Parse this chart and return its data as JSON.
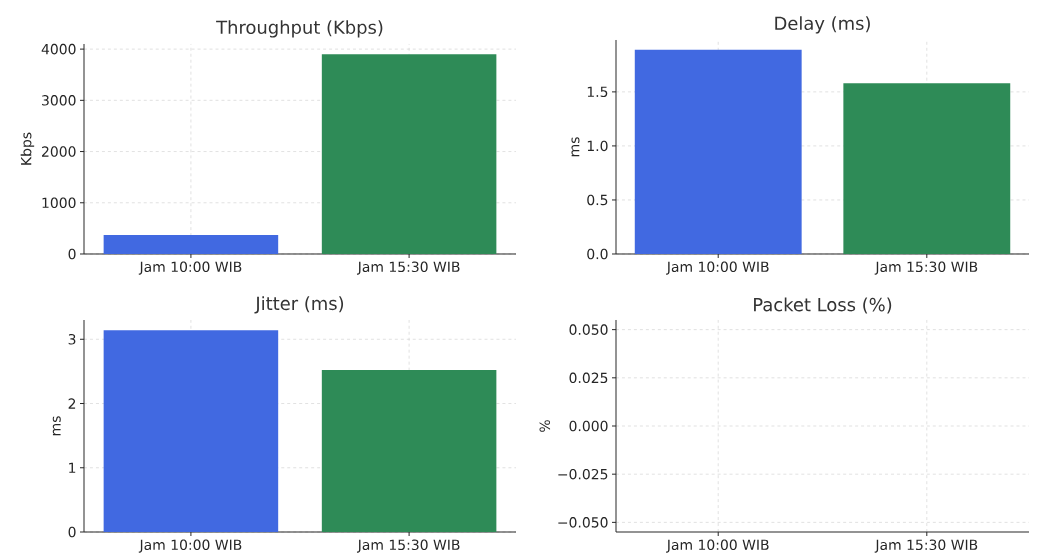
{
  "chart_data": [
    {
      "type": "bar",
      "title": "Throughput (Kbps)",
      "ylabel": "Kbps",
      "categories": [
        "Jam 10:00 WIB",
        "Jam 15:30 WIB"
      ],
      "values": [
        370,
        3900
      ],
      "colors": [
        "#4169e1",
        "#2e8b57"
      ],
      "ylim": [
        0,
        4100
      ],
      "yticks": [
        0,
        1000,
        2000,
        3000,
        4000
      ],
      "grid": true
    },
    {
      "type": "bar",
      "title": "Delay (ms)",
      "ylabel": "ms",
      "categories": [
        "Jam 10:00 WIB",
        "Jam 15:30 WIB"
      ],
      "values": [
        1.89,
        1.58
      ],
      "colors": [
        "#4169e1",
        "#2e8b57"
      ],
      "ylim": [
        0,
        1.98
      ],
      "yticks": [
        {
          "value": 0,
          "label": "0.0"
        },
        0.5,
        {
          "value": 1,
          "label": "1.0"
        },
        1.5
      ],
      "grid": true
    },
    {
      "type": "bar",
      "title": "Jitter (ms)",
      "ylabel": "ms",
      "categories": [
        "Jam 10:00 WIB",
        "Jam 15:30 WIB"
      ],
      "values": [
        3.14,
        2.52
      ],
      "colors": [
        "#4169e1",
        "#2e8b57"
      ],
      "ylim": [
        0,
        3.3
      ],
      "yticks": [
        0,
        1,
        2,
        3
      ],
      "grid": true
    },
    {
      "type": "bar",
      "title": "Packet Loss (%)",
      "ylabel": "%",
      "categories": [
        "Jam 10:00 WIB",
        "Jam 15:30 WIB"
      ],
      "values": [
        0,
        0
      ],
      "colors": [
        "#4169e1",
        "#2e8b57"
      ],
      "ylim": [
        -0.055,
        0.055
      ],
      "yticks": [
        {
          "value": -0.05,
          "label": "−0.050"
        },
        {
          "value": -0.025,
          "label": "−0.025"
        },
        {
          "value": 0,
          "label": "0.000"
        },
        {
          "value": 0.025,
          "label": "0.025"
        },
        {
          "value": 0.05,
          "label": "0.050"
        }
      ],
      "grid": true
    }
  ]
}
